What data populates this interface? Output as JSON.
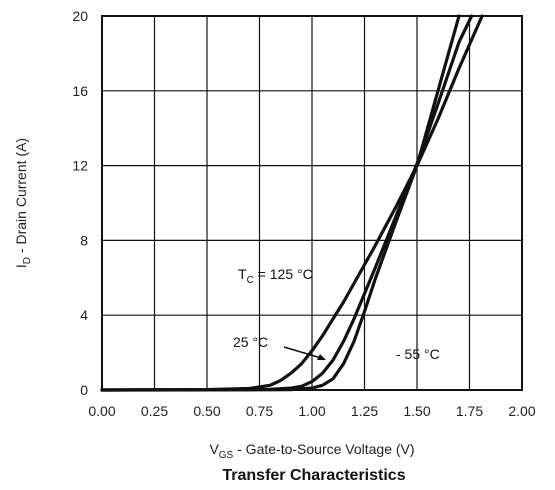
{
  "chart_data": {
    "type": "line",
    "title": "Transfer Characteristics",
    "xlabel": {
      "main": "V",
      "sub": "GS",
      "rest": " - Gate-to-Source Voltage (V)"
    },
    "ylabel": {
      "main": "I",
      "sub": "D",
      "rest": " - Drain Current (A)"
    },
    "xlim": [
      0,
      2.0
    ],
    "ylim": [
      0,
      20
    ],
    "xticks": [
      "0.00",
      "0.25",
      "0.50",
      "0.75",
      "1.00",
      "1.25",
      "1.50",
      "1.75",
      "2.00"
    ],
    "xtick_values": [
      0,
      0.25,
      0.5,
      0.75,
      1.0,
      1.25,
      1.5,
      1.75,
      2.0
    ],
    "yticks": [
      "0",
      "4",
      "8",
      "12",
      "16",
      "20"
    ],
    "ytick_values": [
      0,
      4,
      8,
      12,
      16,
      20
    ],
    "grid": true,
    "series": [
      {
        "id": "tc-125",
        "x": [
          0,
          0.5,
          0.7,
          0.8,
          0.85,
          0.9,
          0.95,
          1.0,
          1.05,
          1.1,
          1.15,
          1.2,
          1.3,
          1.4,
          1.5,
          1.6,
          1.7,
          1.81
        ],
        "y": [
          0,
          0.02,
          0.08,
          0.25,
          0.5,
          0.9,
          1.4,
          2.1,
          2.9,
          3.8,
          4.7,
          5.7,
          7.7,
          9.8,
          12.0,
          14.5,
          17.2,
          20.0
        ]
      },
      {
        "id": "tc-25",
        "x": [
          0,
          0.5,
          0.8,
          0.9,
          0.95,
          1.0,
          1.05,
          1.1,
          1.15,
          1.2,
          1.3,
          1.4,
          1.5,
          1.6,
          1.7,
          1.76
        ],
        "y": [
          0,
          0.01,
          0.03,
          0.1,
          0.2,
          0.45,
          0.9,
          1.6,
          2.6,
          3.8,
          6.5,
          9.3,
          12.1,
          15.3,
          18.6,
          20.0
        ]
      },
      {
        "id": "tc-minus55",
        "x": [
          0,
          0.5,
          0.9,
          1.0,
          1.05,
          1.1,
          1.15,
          1.2,
          1.25,
          1.3,
          1.4,
          1.5,
          1.6,
          1.7
        ],
        "y": [
          0,
          0.005,
          0.02,
          0.1,
          0.25,
          0.6,
          1.4,
          2.6,
          4.2,
          5.9,
          9.0,
          12.0,
          16.0,
          20.0
        ]
      }
    ],
    "annotations": [
      {
        "id": "label-125",
        "main": "T",
        "sub": "C",
        "rest": " = 125 °C"
      },
      {
        "id": "label-25",
        "text": "25 °C"
      },
      {
        "id": "label-minus55",
        "text": "- 55 °C"
      }
    ]
  }
}
